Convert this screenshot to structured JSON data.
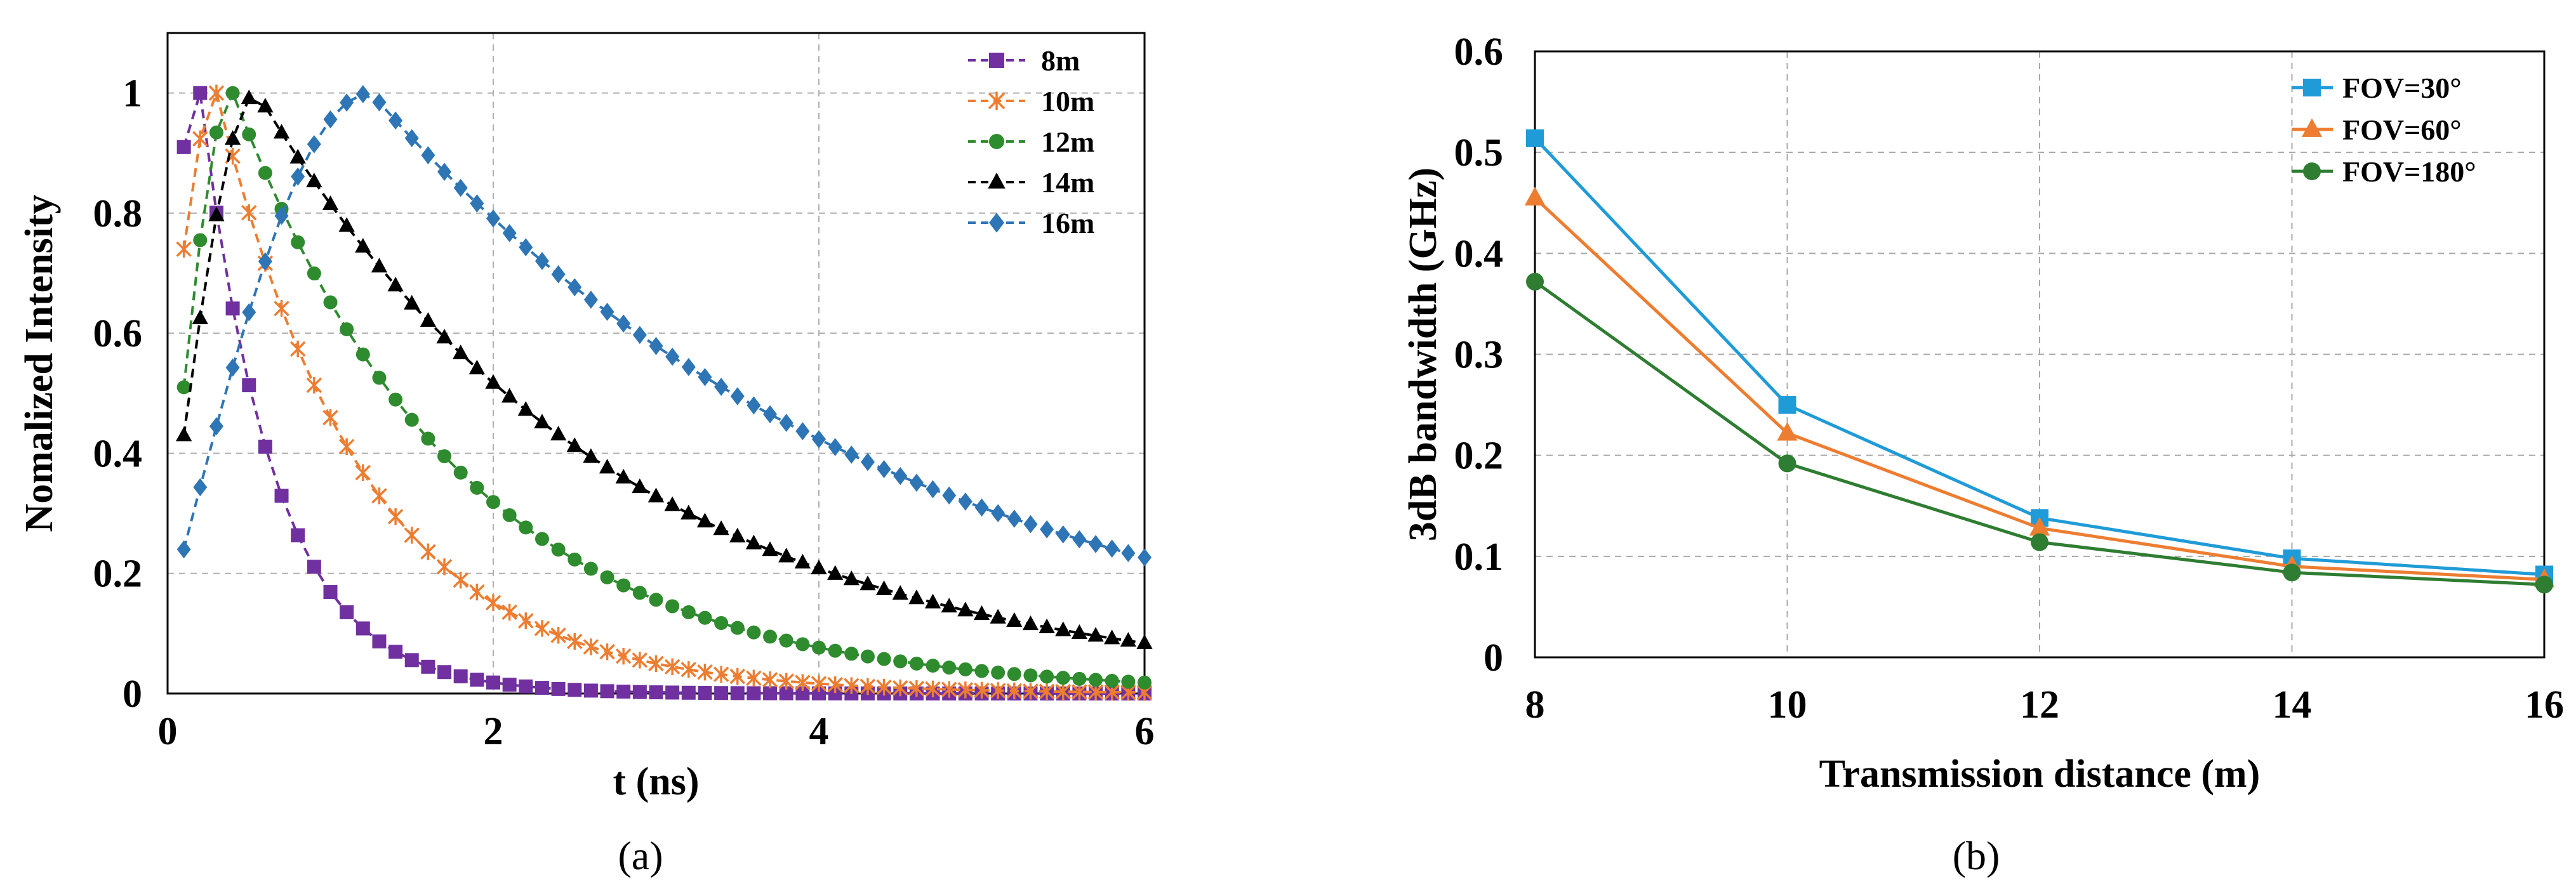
{
  "chart_data": [
    {
      "type": "line",
      "panel_caption": "(a)",
      "title": "",
      "xlabel": "t (ns)",
      "ylabel": "Nomalized Intensity",
      "xlim": [
        0,
        6
      ],
      "ylim": [
        0,
        1.1
      ],
      "xticks": [
        0,
        2,
        4,
        6
      ],
      "yticks": [
        0,
        0.2,
        0.4,
        0.6,
        0.8,
        1
      ],
      "xtick_labels": [
        "0",
        "2",
        "4",
        "6"
      ],
      "ytick_labels": [
        "0",
        "0.2",
        "0.4",
        "0.6",
        "0.8",
        "1"
      ],
      "grid": true,
      "legend_position": "top-right",
      "series": [
        {
          "name": "8m",
          "color": "#7030a0",
          "marker": "square",
          "dashed": true,
          "peak": 0.2,
          "rise": 0.1,
          "tau": 0.45,
          "start": 0.91
        },
        {
          "name": "10m",
          "color": "#ed7d31",
          "marker": "asterisk",
          "dashed": true,
          "peak": 0.3,
          "rise": 0.2,
          "tau": 0.9,
          "start": 0.74
        },
        {
          "name": "12m",
          "color": "#2e8b2e",
          "marker": "circle",
          "dashed": true,
          "peak": 0.4,
          "rise": 0.3,
          "tau": 1.4,
          "start": 0.51
        },
        {
          "name": "14m",
          "color": "#000000",
          "marker": "triangle",
          "dashed": true,
          "peak": 0.55,
          "rise": 0.45,
          "tau": 2.2,
          "start": 0.43
        },
        {
          "name": "16m",
          "color": "#2e75b6",
          "marker": "diamond",
          "dashed": true,
          "peak": 1.25,
          "rise": 1.15,
          "tau": 3.2,
          "start": 0.24
        }
      ]
    },
    {
      "type": "line",
      "panel_caption": "(b)",
      "title": "",
      "xlabel": "Transmission distance (m)",
      "ylabel": "3dB bandwidth (GHz)",
      "categories": [
        8,
        10,
        12,
        14,
        16
      ],
      "xlim": [
        8,
        16
      ],
      "ylim": [
        0,
        0.6
      ],
      "xticks": [
        8,
        10,
        12,
        14,
        16
      ],
      "yticks": [
        0,
        0.1,
        0.2,
        0.3,
        0.4,
        0.5,
        0.6
      ],
      "xtick_labels": [
        "8",
        "10",
        "12",
        "14",
        "16"
      ],
      "ytick_labels": [
        "0",
        "0.1",
        "0.2",
        "0.3",
        "0.4",
        "0.5",
        "0.6"
      ],
      "grid": true,
      "legend_position": "top-right",
      "series": [
        {
          "name": "FOV=30°",
          "color": "#1f9bd7",
          "marker": "square",
          "values": [
            0.514,
            0.25,
            0.138,
            0.098,
            0.082
          ]
        },
        {
          "name": "FOV=60°",
          "color": "#ed7d31",
          "marker": "triangle",
          "values": [
            0.455,
            0.222,
            0.128,
            0.09,
            0.077
          ]
        },
        {
          "name": "FOV=180°",
          "color": "#2e7d32",
          "marker": "circle",
          "values": [
            0.372,
            0.192,
            0.114,
            0.084,
            0.072
          ]
        }
      ]
    }
  ]
}
